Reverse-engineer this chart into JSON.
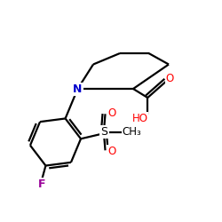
{
  "bg_color": "#ffffff",
  "bond_color": "#000000",
  "bond_lw": 1.6,
  "N_color": "#0000cc",
  "O_color": "#ff0000",
  "F_color": "#990099",
  "S_color": "#000000",
  "figsize": [
    2.5,
    2.5
  ],
  "dpi": 100,
  "xlim": [
    0,
    10
  ],
  "ylim": [
    0,
    10
  ]
}
